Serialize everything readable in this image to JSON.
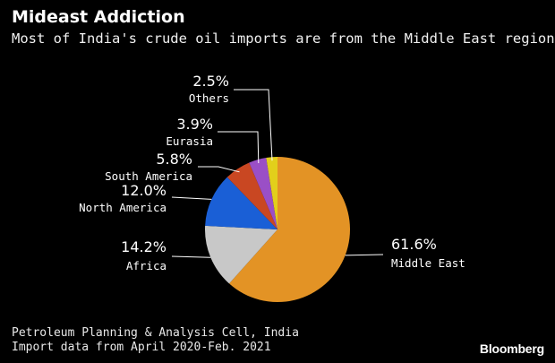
{
  "header": {
    "title": "Mideast Addiction",
    "subtitle": "Most of India's crude oil imports are from the Middle East region"
  },
  "footer": {
    "source_line1": "Petroleum Planning & Analysis Cell, India",
    "source_line2": "Import data from April 2020-Feb. 2021",
    "brand": "Bloomberg"
  },
  "chart_data": {
    "type": "pie",
    "title": "Mideast Addiction",
    "subtitle": "Most of India's crude oil imports are from the Middle East region",
    "unit": "%",
    "start": "top, clockwise",
    "slices": [
      {
        "name": "Middle East",
        "value": 61.6,
        "label": "61.6%",
        "color": "#e39325"
      },
      {
        "name": "Africa",
        "value": 14.2,
        "label": "14.2%",
        "color": "#c8c8c8"
      },
      {
        "name": "North America",
        "value": 12.0,
        "label": "12.0%",
        "color": "#1a5fd6"
      },
      {
        "name": "South America",
        "value": 5.8,
        "label": "5.8%",
        "color": "#c94722"
      },
      {
        "name": "Eurasia",
        "value": 3.9,
        "label": "3.9%",
        "color": "#9a4fc6"
      },
      {
        "name": "Others",
        "value": 2.5,
        "label": "2.5%",
        "color": "#e2cf1b"
      }
    ]
  }
}
